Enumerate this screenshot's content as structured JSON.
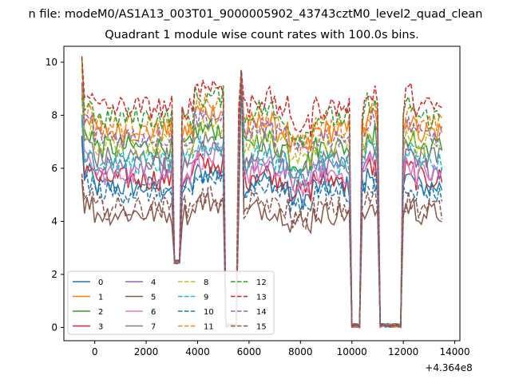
{
  "header": {
    "supertitle": "n file: modeM0/AS1A13_003T01_9000005902_43743cztM0_level2_quad_clean",
    "title": "Quadrant 1 module wise count rates with 100.0s bins."
  },
  "chart_data": {
    "type": "line",
    "title": "Quadrant 1 module wise count rates with 100.0s bins.",
    "xlabel": "",
    "ylabel": "",
    "x_offset_label": "+4.364e8",
    "xlim": [
      -1200,
      14200
    ],
    "ylim": [
      -0.5,
      10.6
    ],
    "xticks": [
      0,
      2000,
      4000,
      6000,
      8000,
      10000,
      12000,
      14000
    ],
    "yticks": [
      0,
      2,
      4,
      6,
      8,
      10
    ],
    "legend": {
      "position": "lower-left",
      "columns": 4
    },
    "series": [
      {
        "name": "0",
        "color": "#1f77b4",
        "dash": "solid",
        "base": 5.3
      },
      {
        "name": "1",
        "color": "#ff7f0e",
        "dash": "solid",
        "base": 7.4
      },
      {
        "name": "2",
        "color": "#2ca02c",
        "dash": "solid",
        "base": 6.8
      },
      {
        "name": "3",
        "color": "#d62728",
        "dash": "solid",
        "base": 5.6
      },
      {
        "name": "4",
        "color": "#9467bd",
        "dash": "solid",
        "base": 6.0
      },
      {
        "name": "5",
        "color": "#8c564b",
        "dash": "solid",
        "base": 4.3
      },
      {
        "name": "6",
        "color": "#e377c2",
        "dash": "solid",
        "base": 5.8
      },
      {
        "name": "7",
        "color": "#7f7f7f",
        "dash": "solid",
        "base": 6.4
      },
      {
        "name": "8",
        "color": "#bcbd22",
        "dash": "dashed",
        "base": 6.9
      },
      {
        "name": "9",
        "color": "#17becf",
        "dash": "dashed",
        "base": 6.2
      },
      {
        "name": "10",
        "color": "#1f77b4",
        "dash": "dashed",
        "base": 5.1
      },
      {
        "name": "11",
        "color": "#ff7f0e",
        "dash": "dashed",
        "base": 7.6
      },
      {
        "name": "12",
        "color": "#2ca02c",
        "dash": "dashed",
        "base": 7.9
      },
      {
        "name": "13",
        "color": "#d62728",
        "dash": "dashed",
        "base": 8.3
      },
      {
        "name": "14",
        "color": "#9467bd",
        "dash": "dashed",
        "base": 7.2
      },
      {
        "name": "15",
        "color": "#8c564b",
        "dash": "dashed",
        "base": 4.5
      }
    ],
    "x_start": -500,
    "x_end": 13500,
    "x_step": 100,
    "dips": [
      {
        "x_center": 3200,
        "half_width": 100,
        "value": 2.4
      },
      {
        "x_center": 5300,
        "half_width": 200,
        "value": 0.0
      },
      {
        "x_center": 10150,
        "half_width": 150,
        "value": 0.0
      },
      {
        "x_center": 11500,
        "half_width": 450,
        "value": 0.0
      }
    ]
  }
}
